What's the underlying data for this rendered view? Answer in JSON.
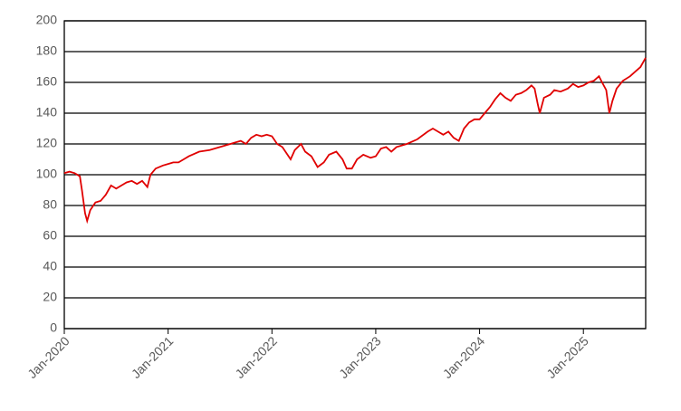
{
  "chart_data": {
    "type": "line",
    "x": [
      2020.0,
      2020.05,
      2020.1,
      2020.15,
      2020.17,
      2020.2,
      2020.22,
      2020.25,
      2020.3,
      2020.35,
      2020.4,
      2020.45,
      2020.5,
      2020.55,
      2020.6,
      2020.65,
      2020.7,
      2020.75,
      2020.8,
      2020.83,
      2020.88,
      2020.95,
      2021.0,
      2021.05,
      2021.1,
      2021.15,
      2021.2,
      2021.3,
      2021.4,
      2021.5,
      2021.6,
      2021.65,
      2021.7,
      2021.75,
      2021.8,
      2021.85,
      2021.9,
      2021.95,
      2022.0,
      2022.05,
      2022.1,
      2022.15,
      2022.18,
      2022.22,
      2022.28,
      2022.32,
      2022.38,
      2022.44,
      2022.5,
      2022.55,
      2022.62,
      2022.68,
      2022.72,
      2022.77,
      2022.82,
      2022.88,
      2022.95,
      2023.0,
      2023.05,
      2023.1,
      2023.15,
      2023.2,
      2023.3,
      2023.4,
      2023.5,
      2023.55,
      2023.6,
      2023.65,
      2023.7,
      2023.75,
      2023.8,
      2023.85,
      2023.9,
      2023.95,
      2024.0,
      2024.05,
      2024.1,
      2024.15,
      2024.2,
      2024.25,
      2024.3,
      2024.35,
      2024.4,
      2024.45,
      2024.5,
      2024.53,
      2024.56,
      2024.58,
      2024.62,
      2024.68,
      2024.72,
      2024.78,
      2024.85,
      2024.9,
      2024.95,
      2025.0,
      2025.05,
      2025.1,
      2025.15,
      2025.18,
      2025.22,
      2025.25,
      2025.28,
      2025.32,
      2025.38,
      2025.45,
      2025.5,
      2025.55,
      2025.6
    ],
    "series": [
      {
        "color": "#e00000",
        "values": [
          101,
          102,
          101,
          99,
          90,
          75,
          70,
          77,
          82,
          83,
          87,
          93,
          91,
          93,
          95,
          96,
          94,
          96,
          92,
          100,
          104,
          106,
          107,
          108,
          108,
          110,
          112,
          115,
          116,
          118,
          120,
          121,
          122,
          120,
          124,
          126,
          125,
          126,
          125,
          120,
          118,
          113,
          110,
          116,
          120,
          115,
          112,
          105,
          108,
          113,
          115,
          110,
          104,
          104,
          110,
          113,
          111,
          112,
          117,
          118,
          115,
          118,
          120,
          123,
          128,
          130,
          128,
          126,
          128,
          124,
          122,
          130,
          134,
          136,
          136,
          140,
          144,
          149,
          153,
          150,
          148,
          152,
          153,
          155,
          158,
          156,
          146,
          140,
          150,
          152,
          155,
          154,
          156,
          159,
          157,
          158,
          160,
          161,
          164,
          160,
          155,
          140,
          148,
          156,
          161,
          164,
          167,
          170,
          176
        ]
      }
    ],
    "xlim": [
      2020.0,
      2025.6
    ],
    "xticks": [
      {
        "value": 2020,
        "label": "Jan-2020"
      },
      {
        "value": 2021,
        "label": "Jan-2021"
      },
      {
        "value": 2022,
        "label": "Jan-2022"
      },
      {
        "value": 2023,
        "label": "Jan-2023"
      },
      {
        "value": 2024,
        "label": "Jan-2024"
      },
      {
        "value": 2025,
        "label": "Jan-2025"
      }
    ],
    "ylim": [
      0,
      200
    ],
    "yticks": [
      0,
      20,
      40,
      60,
      80,
      100,
      120,
      140,
      160,
      180,
      200
    ],
    "grid": true
  }
}
